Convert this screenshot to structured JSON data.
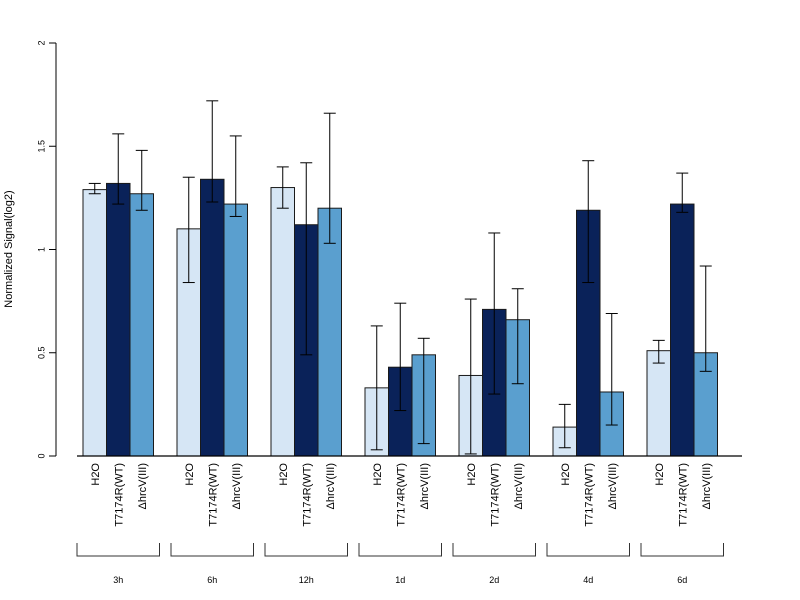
{
  "chart_data": {
    "type": "bar",
    "ylabel": "Normalized Signal(log2)",
    "ylim": [
      0,
      2
    ],
    "yticks": [
      "0",
      "0.5",
      "1",
      "1.5",
      "2"
    ],
    "categories": [
      "3h",
      "6h",
      "12h",
      "1d",
      "2d",
      "4d",
      "6d"
    ],
    "series": [
      {
        "name": "H2O",
        "color": "#d6e6f5",
        "values": [
          1.29,
          1.1,
          1.3,
          0.33,
          0.39,
          0.14,
          0.51
        ],
        "err_low": [
          1.27,
          0.84,
          1.2,
          0.03,
          0.01,
          0.04,
          0.45
        ],
        "err_high": [
          1.32,
          1.35,
          1.4,
          0.63,
          0.76,
          0.25,
          0.56
        ]
      },
      {
        "name": "T7174R(WT)",
        "color": "#0a2259",
        "values": [
          1.32,
          1.34,
          1.12,
          0.43,
          0.71,
          1.19,
          1.22
        ],
        "err_low": [
          1.22,
          1.23,
          0.49,
          0.22,
          0.3,
          0.84,
          1.18
        ],
        "err_high": [
          1.56,
          1.72,
          1.42,
          0.74,
          1.08,
          1.43,
          1.37
        ]
      },
      {
        "name": "ΔhrcV(III)",
        "color": "#5a9fcf",
        "values": [
          1.27,
          1.22,
          1.2,
          0.49,
          0.66,
          0.31,
          0.5
        ],
        "err_low": [
          1.19,
          1.16,
          1.03,
          0.06,
          0.35,
          0.15,
          0.41
        ],
        "err_high": [
          1.48,
          1.55,
          1.66,
          0.57,
          0.81,
          0.69,
          0.92
        ]
      }
    ],
    "grid": false,
    "legend": "none"
  }
}
